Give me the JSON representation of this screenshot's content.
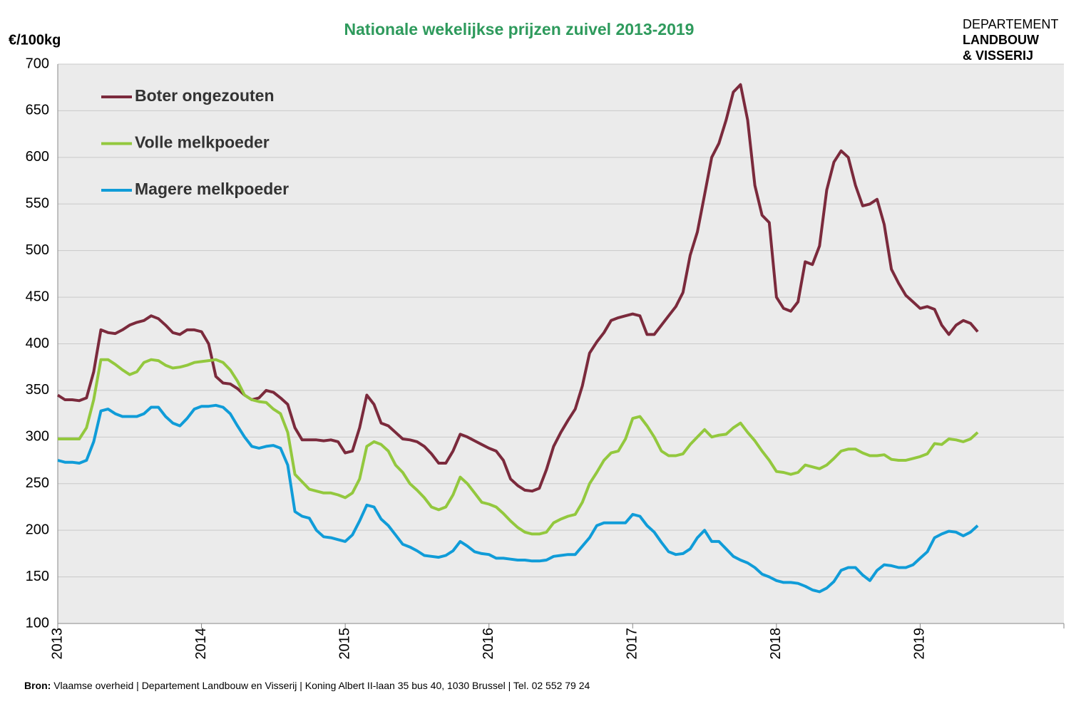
{
  "chart_data": {
    "type": "line",
    "title": "Nationale wekelijkse prijzen zuivel 2013-2019",
    "y_label": "€/100kg",
    "logo": [
      "DEPARTEMENT",
      "LANDBOUW",
      "& VISSERIJ"
    ],
    "source_label": "Bron:",
    "source_text": "Vlaamse overheid | Departement Landbouw en Visserij | Koning Albert II-laan 35 bus 40, 1030 Brussel | Tel. 02 552 79 24",
    "legend_position": "upper left",
    "grid": true,
    "xlim": [
      2013,
      2020
    ],
    "xticks": [
      2013,
      2014,
      2015,
      2016,
      2017,
      2018,
      2019
    ],
    "ylim": [
      100,
      700
    ],
    "yticks": [
      100,
      150,
      200,
      250,
      300,
      350,
      400,
      450,
      500,
      550,
      600,
      650,
      700
    ],
    "x": [
      2013,
      2013.05,
      2013.1,
      2013.15,
      2013.2,
      2013.25,
      2013.3,
      2013.35,
      2013.4,
      2013.45,
      2013.5,
      2013.55,
      2013.6,
      2013.65,
      2013.7,
      2013.75,
      2013.8,
      2013.85,
      2013.9,
      2013.95,
      2014,
      2014.05,
      2014.1,
      2014.15,
      2014.2,
      2014.25,
      2014.3,
      2014.35,
      2014.4,
      2014.45,
      2014.5,
      2014.55,
      2014.6,
      2014.65,
      2014.7,
      2014.75,
      2014.8,
      2014.85,
      2014.9,
      2014.95,
      2015,
      2015.05,
      2015.1,
      2015.15,
      2015.2,
      2015.25,
      2015.3,
      2015.35,
      2015.4,
      2015.45,
      2015.5,
      2015.55,
      2015.6,
      2015.65,
      2015.7,
      2015.75,
      2015.8,
      2015.85,
      2015.9,
      2015.95,
      2016,
      2016.05,
      2016.1,
      2016.15,
      2016.2,
      2016.25,
      2016.3,
      2016.35,
      2016.4,
      2016.45,
      2016.5,
      2016.55,
      2016.6,
      2016.65,
      2016.7,
      2016.75,
      2016.8,
      2016.85,
      2016.9,
      2016.95,
      2017,
      2017.05,
      2017.1,
      2017.15,
      2017.2,
      2017.25,
      2017.3,
      2017.35,
      2017.4,
      2017.45,
      2017.5,
      2017.55,
      2017.6,
      2017.65,
      2017.7,
      2017.75,
      2017.8,
      2017.85,
      2017.9,
      2017.95,
      2018,
      2018.05,
      2018.1,
      2018.15,
      2018.2,
      2018.25,
      2018.3,
      2018.35,
      2018.4,
      2018.45,
      2018.5,
      2018.55,
      2018.6,
      2018.65,
      2018.7,
      2018.75,
      2018.8,
      2018.85,
      2018.9,
      2018.95,
      2019,
      2019.05,
      2019.1,
      2019.15,
      2019.2,
      2019.25,
      2019.3,
      2019.35,
      2019.4
    ],
    "series": [
      {
        "name": "Boter ongezouten",
        "color": "#7b2a3c",
        "values": [
          345,
          340,
          340,
          339,
          342,
          370,
          415,
          412,
          411,
          415,
          420,
          423,
          425,
          430,
          427,
          420,
          412,
          410,
          415,
          415,
          413,
          400,
          365,
          358,
          357,
          352,
          345,
          340,
          342,
          350,
          348,
          342,
          335,
          310,
          297,
          297,
          297,
          296,
          297,
          295,
          283,
          285,
          310,
          345,
          335,
          315,
          312,
          305,
          298,
          297,
          295,
          290,
          282,
          272,
          272,
          285,
          303,
          300,
          296,
          292,
          288,
          285,
          275,
          255,
          248,
          243,
          242,
          245,
          265,
          290,
          305,
          318,
          330,
          355,
          390,
          402,
          412,
          425,
          428,
          430,
          432,
          430,
          410,
          410,
          420,
          430,
          440,
          455,
          495,
          520,
          560,
          600,
          615,
          640,
          670,
          678,
          640,
          570,
          538,
          530,
          450,
          438,
          435,
          445,
          488,
          485,
          505,
          565,
          595,
          607,
          600,
          570,
          548,
          550,
          555,
          528,
          480,
          465,
          452,
          445,
          438,
          440,
          437,
          420,
          410,
          420,
          425,
          422,
          413
        ]
      },
      {
        "name": "Volle melkpoeder",
        "color": "#93c83e",
        "values": [
          298,
          298,
          298,
          298,
          310,
          340,
          383,
          383,
          378,
          372,
          367,
          370,
          380,
          383,
          382,
          377,
          374,
          375,
          377,
          380,
          381,
          382,
          383,
          380,
          372,
          360,
          345,
          340,
          338,
          337,
          330,
          325,
          305,
          260,
          252,
          244,
          242,
          240,
          240,
          238,
          235,
          240,
          255,
          290,
          295,
          292,
          285,
          270,
          262,
          250,
          243,
          235,
          225,
          222,
          225,
          238,
          257,
          250,
          240,
          230,
          228,
          225,
          218,
          210,
          203,
          198,
          196,
          196,
          198,
          208,
          212,
          215,
          217,
          230,
          250,
          262,
          275,
          283,
          285,
          298,
          320,
          322,
          312,
          300,
          285,
          280,
          280,
          282,
          292,
          300,
          308,
          300,
          302,
          303,
          310,
          315,
          305,
          296,
          285,
          275,
          263,
          262,
          260,
          262,
          270,
          268,
          266,
          270,
          277,
          285,
          287,
          287,
          283,
          280,
          280,
          281,
          276,
          275,
          275,
          277,
          279,
          282,
          293,
          292,
          298,
          297,
          295,
          298,
          305
        ]
      },
      {
        "name": "Magere melkpoeder",
        "color": "#109cd8",
        "values": [
          275,
          273,
          273,
          272,
          275,
          295,
          328,
          330,
          325,
          322,
          322,
          322,
          325,
          332,
          332,
          322,
          315,
          312,
          320,
          330,
          333,
          333,
          334,
          332,
          325,
          312,
          300,
          290,
          288,
          290,
          291,
          288,
          270,
          220,
          215,
          213,
          200,
          193,
          192,
          190,
          188,
          195,
          210,
          227,
          225,
          212,
          205,
          195,
          185,
          182,
          178,
          173,
          172,
          171,
          173,
          178,
          188,
          183,
          177,
          175,
          174,
          170,
          170,
          169,
          168,
          168,
          167,
          167,
          168,
          172,
          173,
          174,
          174,
          183,
          192,
          205,
          208,
          208,
          208,
          208,
          217,
          215,
          205,
          198,
          187,
          177,
          174,
          175,
          180,
          192,
          200,
          188,
          188,
          180,
          172,
          168,
          165,
          160,
          153,
          150,
          146,
          144,
          144,
          143,
          140,
          136,
          134,
          138,
          145,
          157,
          160,
          160,
          152,
          146,
          157,
          163,
          162,
          160,
          160,
          163,
          170,
          177,
          192,
          196,
          199,
          198,
          194,
          198,
          205
        ]
      }
    ]
  }
}
